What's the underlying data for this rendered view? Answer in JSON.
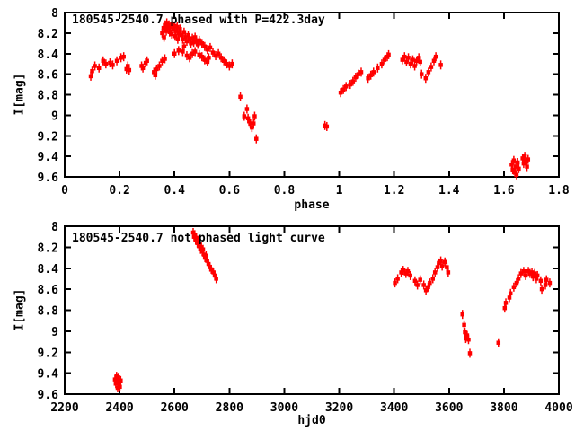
{
  "window": {
    "background": "#ffffff",
    "axis_color": "#000000"
  },
  "chart_data": [
    {
      "type": "scatter",
      "title": "180545-2540.7 phased with P=422.3day",
      "xlabel": "phase",
      "ylabel": "I[mag]",
      "marker": "filled-square-with-errorbar",
      "marker_color": "#ff0000",
      "xlim": [
        0,
        1.8
      ],
      "ylim_top_to_bottom": [
        8,
        9.6
      ],
      "grid": false,
      "xticks": [
        {
          "v": 0,
          "label": "0"
        },
        {
          "v": 0.2,
          "label": "0.2"
        },
        {
          "v": 0.4,
          "label": "0.4"
        },
        {
          "v": 0.6,
          "label": "0.6"
        },
        {
          "v": 0.8,
          "label": "0.8"
        },
        {
          "v": 1,
          "label": "1"
        },
        {
          "v": 1.2,
          "label": "1.2"
        },
        {
          "v": 1.4,
          "label": "1.4"
        },
        {
          "v": 1.6,
          "label": "1.6"
        },
        {
          "v": 1.8,
          "label": "1.8"
        }
      ],
      "yticks": [
        {
          "v": 8,
          "label": "8"
        },
        {
          "v": 8.2,
          "label": "8.2"
        },
        {
          "v": 8.4,
          "label": "8.4"
        },
        {
          "v": 8.6,
          "label": "8.6"
        },
        {
          "v": 8.8,
          "label": "8.8"
        },
        {
          "v": 9,
          "label": "9"
        },
        {
          "v": 9.2,
          "label": "9.2"
        },
        {
          "v": 9.4,
          "label": "9.4"
        },
        {
          "v": 9.6,
          "label": "9.6"
        }
      ],
      "points": [
        [
          0.095,
          8.62
        ],
        [
          0.1,
          8.57
        ],
        [
          0.11,
          8.52
        ],
        [
          0.125,
          8.54
        ],
        [
          0.14,
          8.47
        ],
        [
          0.15,
          8.5
        ],
        [
          0.165,
          8.49
        ],
        [
          0.175,
          8.51
        ],
        [
          0.19,
          8.47
        ],
        [
          0.205,
          8.44
        ],
        [
          0.215,
          8.43
        ],
        [
          0.225,
          8.55
        ],
        [
          0.23,
          8.52
        ],
        [
          0.235,
          8.56
        ],
        [
          0.28,
          8.52
        ],
        [
          0.285,
          8.54
        ],
        [
          0.295,
          8.49
        ],
        [
          0.3,
          8.47
        ],
        [
          0.325,
          8.58
        ],
        [
          0.33,
          8.61
        ],
        [
          0.335,
          8.55
        ],
        [
          0.345,
          8.52
        ],
        [
          0.355,
          8.47
        ],
        [
          0.365,
          8.45
        ],
        [
          0.355,
          8.2
        ],
        [
          0.36,
          8.15
        ],
        [
          0.362,
          8.24
        ],
        [
          0.366,
          8.12
        ],
        [
          0.37,
          8.18
        ],
        [
          0.372,
          8.1
        ],
        [
          0.376,
          8.15
        ],
        [
          0.38,
          8.12
        ],
        [
          0.382,
          8.19
        ],
        [
          0.386,
          8.14
        ],
        [
          0.39,
          8.21
        ],
        [
          0.392,
          8.11
        ],
        [
          0.396,
          8.16
        ],
        [
          0.4,
          8.13
        ],
        [
          0.402,
          8.23
        ],
        [
          0.406,
          8.18
        ],
        [
          0.41,
          8.14
        ],
        [
          0.412,
          8.26
        ],
        [
          0.416,
          8.2
        ],
        [
          0.42,
          8.16
        ],
        [
          0.425,
          8.22
        ],
        [
          0.43,
          8.26
        ],
        [
          0.435,
          8.19
        ],
        [
          0.44,
          8.24
        ],
        [
          0.445,
          8.28
        ],
        [
          0.45,
          8.22
        ],
        [
          0.455,
          8.26
        ],
        [
          0.46,
          8.3
        ],
        [
          0.465,
          8.25
        ],
        [
          0.47,
          8.29
        ],
        [
          0.475,
          8.24
        ],
        [
          0.48,
          8.28
        ],
        [
          0.485,
          8.31
        ],
        [
          0.49,
          8.27
        ],
        [
          0.4,
          8.4
        ],
        [
          0.415,
          8.37
        ],
        [
          0.43,
          8.38
        ],
        [
          0.435,
          8.33
        ],
        [
          0.445,
          8.42
        ],
        [
          0.455,
          8.44
        ],
        [
          0.465,
          8.4
        ],
        [
          0.475,
          8.38
        ],
        [
          0.49,
          8.41
        ],
        [
          0.5,
          8.43
        ],
        [
          0.51,
          8.46
        ],
        [
          0.52,
          8.48
        ],
        [
          0.525,
          8.44
        ],
        [
          0.5,
          8.3
        ],
        [
          0.51,
          8.33
        ],
        [
          0.52,
          8.36
        ],
        [
          0.53,
          8.34
        ],
        [
          0.54,
          8.39
        ],
        [
          0.55,
          8.42
        ],
        [
          0.56,
          8.4
        ],
        [
          0.57,
          8.44
        ],
        [
          0.58,
          8.47
        ],
        [
          0.59,
          8.5
        ],
        [
          0.6,
          8.52
        ],
        [
          0.61,
          8.5
        ],
        [
          0.64,
          8.82
        ],
        [
          0.654,
          9.01
        ],
        [
          0.664,
          8.94
        ],
        [
          0.668,
          9.03
        ],
        [
          0.672,
          9.06
        ],
        [
          0.676,
          9.08
        ],
        [
          0.682,
          9.12
        ],
        [
          0.688,
          9.08
        ],
        [
          0.692,
          9.01
        ],
        [
          0.698,
          9.23
        ],
        [
          0.948,
          9.1
        ],
        [
          0.955,
          9.11
        ],
        [
          1.005,
          8.78
        ],
        [
          1.015,
          8.75
        ],
        [
          1.025,
          8.72
        ],
        [
          1.04,
          8.7
        ],
        [
          1.05,
          8.67
        ],
        [
          1.06,
          8.63
        ],
        [
          1.07,
          8.6
        ],
        [
          1.08,
          8.58
        ],
        [
          1.105,
          8.64
        ],
        [
          1.115,
          8.61
        ],
        [
          1.125,
          8.58
        ],
        [
          1.14,
          8.54
        ],
        [
          1.155,
          8.5
        ],
        [
          1.165,
          8.46
        ],
        [
          1.175,
          8.43
        ],
        [
          1.18,
          8.41
        ],
        [
          1.23,
          8.46
        ],
        [
          1.238,
          8.43
        ],
        [
          1.245,
          8.48
        ],
        [
          1.252,
          8.44
        ],
        [
          1.26,
          8.5
        ],
        [
          1.268,
          8.46
        ],
        [
          1.275,
          8.52
        ],
        [
          1.282,
          8.47
        ],
        [
          1.29,
          8.44
        ],
        [
          1.295,
          8.48
        ],
        [
          1.3,
          8.6
        ],
        [
          1.315,
          8.64
        ],
        [
          1.325,
          8.58
        ],
        [
          1.335,
          8.53
        ],
        [
          1.345,
          8.47
        ],
        [
          1.352,
          8.43
        ],
        [
          1.37,
          8.51
        ],
        [
          1.628,
          9.48
        ],
        [
          1.632,
          9.53
        ],
        [
          1.636,
          9.44
        ],
        [
          1.64,
          9.56
        ],
        [
          1.643,
          9.5
        ],
        [
          1.646,
          9.58
        ],
        [
          1.65,
          9.46
        ],
        [
          1.654,
          9.52
        ],
        [
          1.668,
          9.42
        ],
        [
          1.672,
          9.47
        ],
        [
          1.676,
          9.4
        ],
        [
          1.68,
          9.45
        ],
        [
          1.684,
          9.5
        ],
        [
          1.688,
          9.43
        ]
      ]
    },
    {
      "type": "scatter",
      "title": "180545-2540.7 not phased light curve",
      "xlabel": "hjd0",
      "ylabel": "I[mag]",
      "marker": "filled-square-with-errorbar",
      "marker_color": "#ff0000",
      "xlim": [
        2200,
        4000
      ],
      "ylim_top_to_bottom": [
        8,
        9.6
      ],
      "grid": false,
      "xticks": [
        {
          "v": 2200,
          "label": "2200"
        },
        {
          "v": 2400,
          "label": "2400"
        },
        {
          "v": 2600,
          "label": "2600"
        },
        {
          "v": 2800,
          "label": "2800"
        },
        {
          "v": 3000,
          "label": "3000"
        },
        {
          "v": 3200,
          "label": "3200"
        },
        {
          "v": 3400,
          "label": "3400"
        },
        {
          "v": 3600,
          "label": "3600"
        },
        {
          "v": 3800,
          "label": "3800"
        },
        {
          "v": 4000,
          "label": "4000"
        }
      ],
      "yticks": [
        {
          "v": 8,
          "label": "8"
        },
        {
          "v": 8.2,
          "label": "8.2"
        },
        {
          "v": 8.4,
          "label": "8.4"
        },
        {
          "v": 8.6,
          "label": "8.6"
        },
        {
          "v": 8.8,
          "label": "8.8"
        },
        {
          "v": 9,
          "label": "9"
        },
        {
          "v": 9.2,
          "label": "9.2"
        },
        {
          "v": 9.4,
          "label": "9.4"
        },
        {
          "v": 9.6,
          "label": "9.6"
        }
      ],
      "points": [
        [
          2383,
          9.46
        ],
        [
          2386,
          9.5
        ],
        [
          2389,
          9.43
        ],
        [
          2391,
          9.47
        ],
        [
          2393,
          9.54
        ],
        [
          2395,
          9.44
        ],
        [
          2398,
          9.5
        ],
        [
          2401,
          9.53
        ],
        [
          2404,
          9.47
        ],
        [
          2668,
          8.06
        ],
        [
          2671,
          8.1
        ],
        [
          2674,
          8.08
        ],
        [
          2677,
          8.13
        ],
        [
          2680,
          8.11
        ],
        [
          2683,
          8.16
        ],
        [
          2686,
          8.14
        ],
        [
          2689,
          8.19
        ],
        [
          2692,
          8.17
        ],
        [
          2695,
          8.22
        ],
        [
          2698,
          8.2
        ],
        [
          2701,
          8.24
        ],
        [
          2704,
          8.22
        ],
        [
          2707,
          8.27
        ],
        [
          2711,
          8.3
        ],
        [
          2715,
          8.28
        ],
        [
          2719,
          8.33
        ],
        [
          2724,
          8.36
        ],
        [
          2729,
          8.39
        ],
        [
          2734,
          8.41
        ],
        [
          2742,
          8.44
        ],
        [
          2747,
          8.47
        ],
        [
          2752,
          8.5
        ],
        [
          3403,
          8.54
        ],
        [
          3413,
          8.5
        ],
        [
          3426,
          8.44
        ],
        [
          3433,
          8.42
        ],
        [
          3443,
          8.45
        ],
        [
          3450,
          8.43
        ],
        [
          3459,
          8.47
        ],
        [
          3476,
          8.52
        ],
        [
          3485,
          8.56
        ],
        [
          3495,
          8.51
        ],
        [
          3508,
          8.56
        ],
        [
          3516,
          8.61
        ],
        [
          3524,
          8.58
        ],
        [
          3530,
          8.54
        ],
        [
          3541,
          8.5
        ],
        [
          3549,
          8.44
        ],
        [
          3558,
          8.39
        ],
        [
          3563,
          8.35
        ],
        [
          3570,
          8.33
        ],
        [
          3575,
          8.38
        ],
        [
          3585,
          8.34
        ],
        [
          3592,
          8.39
        ],
        [
          3597,
          8.44
        ],
        [
          3649,
          8.84
        ],
        [
          3655,
          8.94
        ],
        [
          3658,
          9.01
        ],
        [
          3661,
          9.07
        ],
        [
          3666,
          9.04
        ],
        [
          3671,
          9.08
        ],
        [
          3676,
          9.21
        ],
        [
          3780,
          9.11
        ],
        [
          3803,
          8.78
        ],
        [
          3807,
          8.73
        ],
        [
          3820,
          8.68
        ],
        [
          3824,
          8.64
        ],
        [
          3836,
          8.58
        ],
        [
          3846,
          8.54
        ],
        [
          3853,
          8.5
        ],
        [
          3862,
          8.45
        ],
        [
          3872,
          8.43
        ],
        [
          3879,
          8.47
        ],
        [
          3889,
          8.43
        ],
        [
          3895,
          8.45
        ],
        [
          3902,
          8.44
        ],
        [
          3906,
          8.48
        ],
        [
          3912,
          8.45
        ],
        [
          3918,
          8.5
        ],
        [
          3922,
          8.47
        ],
        [
          3934,
          8.52
        ],
        [
          3938,
          8.6
        ],
        [
          3951,
          8.56
        ],
        [
          3955,
          8.51
        ],
        [
          3967,
          8.54
        ]
      ]
    }
  ]
}
